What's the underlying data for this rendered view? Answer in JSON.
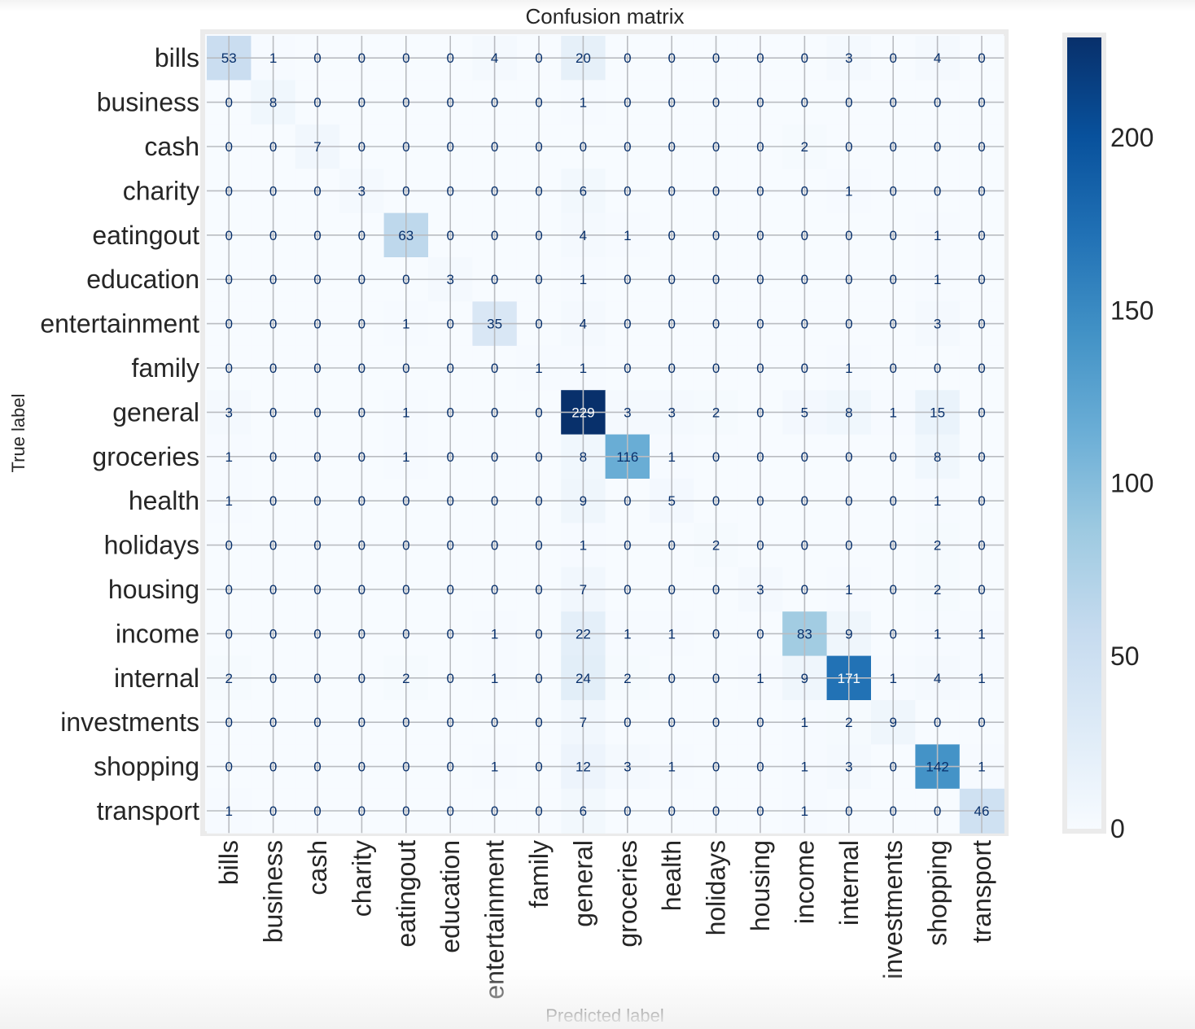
{
  "chart_data": {
    "type": "heatmap",
    "title": "Confusion matrix",
    "xlabel": "Predicted label",
    "ylabel": "True label",
    "x_categories": [
      "bills",
      "business",
      "cash",
      "charity",
      "eatingout",
      "education",
      "entertainment",
      "family",
      "general",
      "groceries",
      "health",
      "holidays",
      "housing",
      "income",
      "internal",
      "investments",
      "shopping",
      "transport"
    ],
    "y_categories": [
      "bills",
      "business",
      "cash",
      "charity",
      "eatingout",
      "education",
      "entertainment",
      "family",
      "general",
      "groceries",
      "health",
      "holidays",
      "housing",
      "income",
      "internal",
      "investments",
      "shopping",
      "transport"
    ],
    "values": [
      [
        53,
        1,
        0,
        0,
        0,
        0,
        4,
        0,
        20,
        0,
        0,
        0,
        0,
        0,
        3,
        0,
        4,
        0
      ],
      [
        0,
        8,
        0,
        0,
        0,
        0,
        0,
        0,
        1,
        0,
        0,
        0,
        0,
        0,
        0,
        0,
        0,
        0
      ],
      [
        0,
        0,
        7,
        0,
        0,
        0,
        0,
        0,
        0,
        0,
        0,
        0,
        0,
        2,
        0,
        0,
        0,
        0
      ],
      [
        0,
        0,
        0,
        3,
        0,
        0,
        0,
        0,
        6,
        0,
        0,
        0,
        0,
        0,
        1,
        0,
        0,
        0
      ],
      [
        0,
        0,
        0,
        0,
        63,
        0,
        0,
        0,
        4,
        1,
        0,
        0,
        0,
        0,
        0,
        0,
        1,
        0
      ],
      [
        0,
        0,
        0,
        0,
        0,
        3,
        0,
        0,
        1,
        0,
        0,
        0,
        0,
        0,
        0,
        0,
        1,
        0
      ],
      [
        0,
        0,
        0,
        0,
        1,
        0,
        35,
        0,
        4,
        0,
        0,
        0,
        0,
        0,
        0,
        0,
        3,
        0
      ],
      [
        0,
        0,
        0,
        0,
        0,
        0,
        0,
        1,
        1,
        0,
        0,
        0,
        0,
        0,
        1,
        0,
        0,
        0
      ],
      [
        3,
        0,
        0,
        0,
        1,
        0,
        0,
        0,
        229,
        3,
        3,
        2,
        0,
        5,
        8,
        1,
        15,
        0
      ],
      [
        1,
        0,
        0,
        0,
        1,
        0,
        0,
        0,
        8,
        116,
        1,
        0,
        0,
        0,
        0,
        0,
        8,
        0
      ],
      [
        1,
        0,
        0,
        0,
        0,
        0,
        0,
        0,
        9,
        0,
        5,
        0,
        0,
        0,
        0,
        0,
        1,
        0
      ],
      [
        0,
        0,
        0,
        0,
        0,
        0,
        0,
        0,
        1,
        0,
        0,
        2,
        0,
        0,
        0,
        0,
        2,
        0
      ],
      [
        0,
        0,
        0,
        0,
        0,
        0,
        0,
        0,
        7,
        0,
        0,
        0,
        3,
        0,
        1,
        0,
        2,
        0
      ],
      [
        0,
        0,
        0,
        0,
        0,
        0,
        1,
        0,
        22,
        1,
        1,
        0,
        0,
        83,
        9,
        0,
        1,
        1
      ],
      [
        2,
        0,
        0,
        0,
        2,
        0,
        1,
        0,
        24,
        2,
        0,
        0,
        1,
        9,
        171,
        1,
        4,
        1
      ],
      [
        0,
        0,
        0,
        0,
        0,
        0,
        0,
        0,
        7,
        0,
        0,
        0,
        0,
        1,
        2,
        9,
        0,
        0
      ],
      [
        0,
        0,
        0,
        0,
        0,
        0,
        1,
        0,
        12,
        3,
        1,
        0,
        0,
        1,
        3,
        0,
        142,
        1
      ],
      [
        1,
        0,
        0,
        0,
        0,
        0,
        0,
        0,
        6,
        0,
        0,
        0,
        0,
        1,
        0,
        0,
        0,
        46
      ]
    ],
    "colorbar": {
      "min": 0,
      "max": 229,
      "ticks": [
        0,
        50,
        100,
        150,
        200
      ],
      "colormap": "Blues"
    },
    "grid": true
  }
}
